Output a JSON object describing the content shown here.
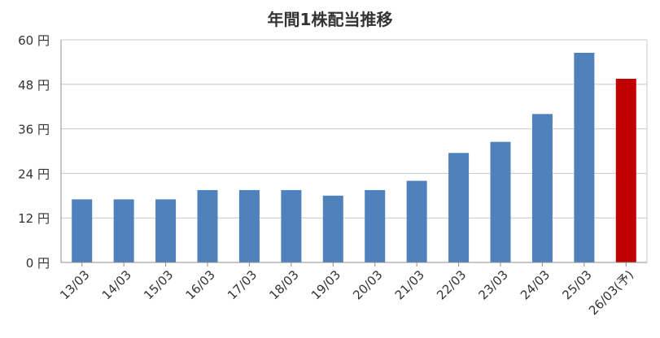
{
  "chart_data": {
    "type": "bar",
    "title": "年間1株配当推移",
    "xlabel": "",
    "ylabel": "",
    "ylim": [
      0,
      60
    ],
    "yticks": [
      0,
      12,
      24,
      36,
      48,
      60
    ],
    "ytick_labels": [
      "0 円",
      "12 円",
      "24 円",
      "36 円",
      "48 円",
      "60 円"
    ],
    "grid": true,
    "categories": [
      "13/03",
      "14/03",
      "15/03",
      "16/03",
      "17/03",
      "18/03",
      "19/03",
      "20/03",
      "21/03",
      "22/03",
      "23/03",
      "24/03",
      "25/03",
      "26/03(予)"
    ],
    "values": [
      17,
      17,
      17,
      19.5,
      19.5,
      19.5,
      18,
      19.5,
      22,
      29.5,
      32.5,
      40,
      56.5,
      49.5
    ],
    "colors": {
      "actual": "#4f81bd",
      "forecast": "#c00000",
      "grid": "#c8c8c8",
      "axis": "#8c8c8c",
      "text": "#333333"
    },
    "forecast_categories": [
      "26/03(予)"
    ]
  }
}
